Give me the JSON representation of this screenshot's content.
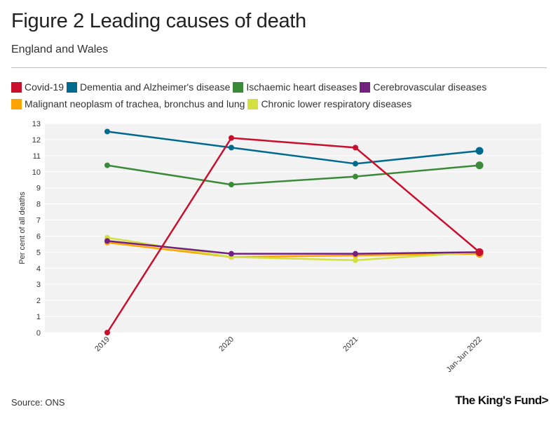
{
  "header": {
    "title": "Figure 2 Leading causes of death",
    "subtitle": "England and Wales"
  },
  "footer": {
    "source": "Source: ONS",
    "logo_text": "The King's Fund>"
  },
  "chart_data": {
    "type": "line",
    "title": "Figure 2 Leading causes of death",
    "subtitle": "England and Wales",
    "xlabel": "",
    "ylabel": "Per cent of all deaths",
    "ylim": [
      0,
      13
    ],
    "yticks": [
      0,
      1,
      2,
      3,
      4,
      5,
      6,
      7,
      8,
      9,
      10,
      11,
      12,
      13
    ],
    "categories": [
      "2019",
      "2020",
      "2021",
      "Jan-Jun 2022"
    ],
    "grid": true,
    "legend_position": "top",
    "series": [
      {
        "name": "Covid-19",
        "color": "#c8102e",
        "values": [
          0,
          12.1,
          11.5,
          5.0
        ]
      },
      {
        "name": "Dementia and Alzheimer's disease",
        "color": "#006a8e",
        "values": [
          12.5,
          11.5,
          10.5,
          11.3
        ]
      },
      {
        "name": "Ischaemic heart diseases",
        "color": "#3a8a3a",
        "values": [
          10.4,
          9.2,
          9.7,
          10.4
        ]
      },
      {
        "name": "Cerebrovascular diseases",
        "color": "#73217f",
        "values": [
          5.7,
          4.9,
          4.9,
          5.0
        ]
      },
      {
        "name": "Malignant neoplasm of trachea, bronchus and lung",
        "color": "#ffa300",
        "values": [
          5.6,
          4.7,
          4.8,
          4.9
        ]
      },
      {
        "name": "Chronic lower respiratory diseases",
        "color": "#d4e040",
        "values": [
          5.9,
          4.7,
          4.5,
          5.0
        ]
      }
    ]
  }
}
